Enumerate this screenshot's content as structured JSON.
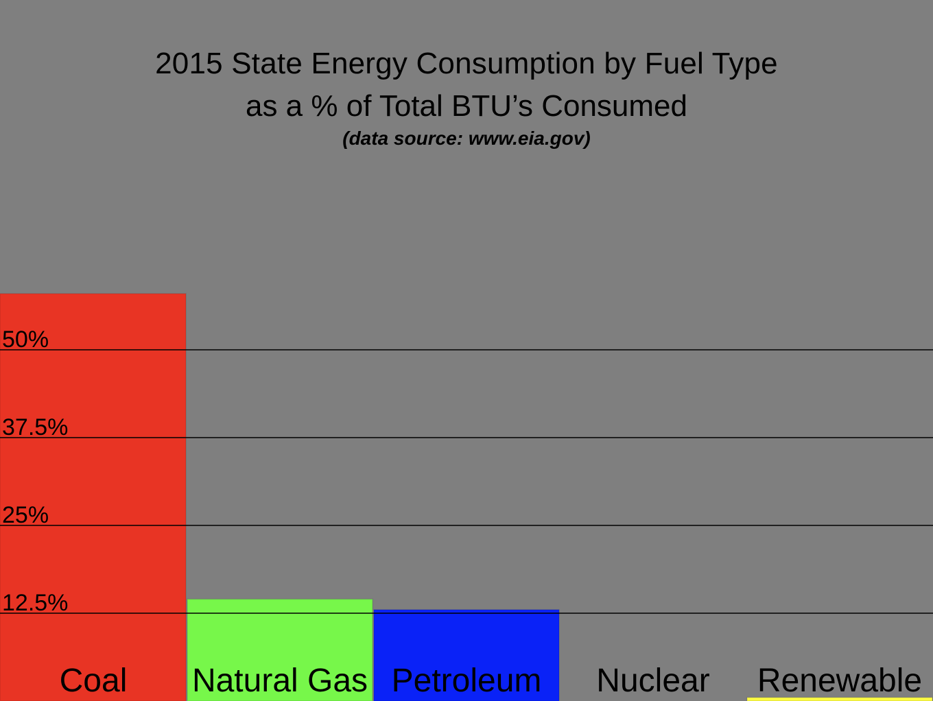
{
  "chart_data": {
    "type": "bar",
    "title": "2015 State Energy Consumption by Fuel Type",
    "subtitle": "as a % of Total BTU’s Consumed",
    "source_note": "(data source: www.eia.gov)",
    "categories": [
      "Coal",
      "Natural Gas",
      "Petroleum",
      "Nuclear",
      "Renewable"
    ],
    "values": [
      58,
      14.5,
      13,
      0,
      0.5
    ],
    "colors": [
      "#e83424",
      "#77f74a",
      "#0a22f7",
      "#7f7f7f",
      "#fcfb44"
    ],
    "yticks": [
      12.5,
      25,
      37.5,
      50
    ],
    "ytick_labels": [
      "12.5%",
      "25%",
      "37.5%",
      "50%"
    ],
    "ylim": [
      0,
      62.5
    ],
    "grid": true,
    "legend": "none"
  }
}
